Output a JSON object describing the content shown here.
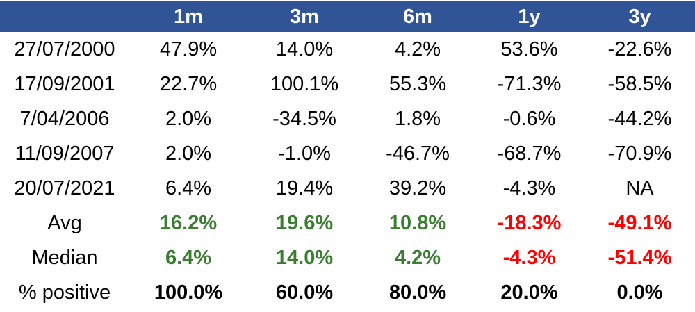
{
  "colors": {
    "header_bg": "#305496",
    "header_text": "#ffffff",
    "positive_value": "#3A7D31",
    "negative_value": "#FF0000",
    "text": "#000000",
    "background": "#ffffff"
  },
  "table": {
    "columns": [
      "",
      "1m",
      "3m",
      "6m",
      "1y",
      "3y"
    ],
    "rows": [
      {
        "label": "27/07/2000",
        "values": [
          "47.9%",
          "14.0%",
          "4.2%",
          "53.6%",
          "-22.6%"
        ],
        "bold": false,
        "colorize": false
      },
      {
        "label": "17/09/2001",
        "values": [
          "22.7%",
          "100.1%",
          "55.3%",
          "-71.3%",
          "-58.5%"
        ],
        "bold": false,
        "colorize": false
      },
      {
        "label": "7/04/2006",
        "values": [
          "2.0%",
          "-34.5%",
          "1.8%",
          "-0.6%",
          "-44.2%"
        ],
        "bold": false,
        "colorize": false
      },
      {
        "label": "11/09/2007",
        "values": [
          "2.0%",
          "-1.0%",
          "-46.7%",
          "-68.7%",
          "-70.9%"
        ],
        "bold": false,
        "colorize": false
      },
      {
        "label": "20/07/2021",
        "values": [
          "6.4%",
          "19.4%",
          "39.2%",
          "-4.3%",
          "NA"
        ],
        "bold": false,
        "colorize": false
      },
      {
        "label": "Avg",
        "values": [
          "16.2%",
          "19.6%",
          "10.8%",
          "-18.3%",
          "-49.1%"
        ],
        "bold": true,
        "colorize": true
      },
      {
        "label": "Median",
        "values": [
          "6.4%",
          "14.0%",
          "4.2%",
          "-4.3%",
          "-51.4%"
        ],
        "bold": true,
        "colorize": true
      },
      {
        "label": "% positive",
        "values": [
          "100.0%",
          "60.0%",
          "80.0%",
          "20.0%",
          "0.0%"
        ],
        "bold": true,
        "colorize": false
      }
    ]
  },
  "chart_data": {
    "type": "table",
    "columns": [
      "1m",
      "3m",
      "6m",
      "1y",
      "3y"
    ],
    "rows": [
      {
        "label": "27/07/2000",
        "values_pct": [
          47.9,
          14.0,
          4.2,
          53.6,
          -22.6
        ]
      },
      {
        "label": "17/09/2001",
        "values_pct": [
          22.7,
          100.1,
          55.3,
          -71.3,
          -58.5
        ]
      },
      {
        "label": "7/04/2006",
        "values_pct": [
          2.0,
          -34.5,
          1.8,
          -0.6,
          -44.2
        ]
      },
      {
        "label": "11/09/2007",
        "values_pct": [
          2.0,
          -1.0,
          -46.7,
          -68.7,
          -70.9
        ]
      },
      {
        "label": "20/07/2021",
        "values_pct": [
          6.4,
          19.4,
          39.2,
          -4.3,
          null
        ]
      },
      {
        "label": "Avg",
        "values_pct": [
          16.2,
          19.6,
          10.8,
          -18.3,
          -49.1
        ]
      },
      {
        "label": "Median",
        "values_pct": [
          6.4,
          14.0,
          4.2,
          -4.3,
          -51.4
        ]
      },
      {
        "label": "% positive",
        "values_pct": [
          100.0,
          60.0,
          80.0,
          20.0,
          0.0
        ]
      }
    ],
    "notes": "NA shown for 20/07/2021 at 3y horizon; Avg/Median values colored green when positive, red when negative; % positive row bold black"
  }
}
